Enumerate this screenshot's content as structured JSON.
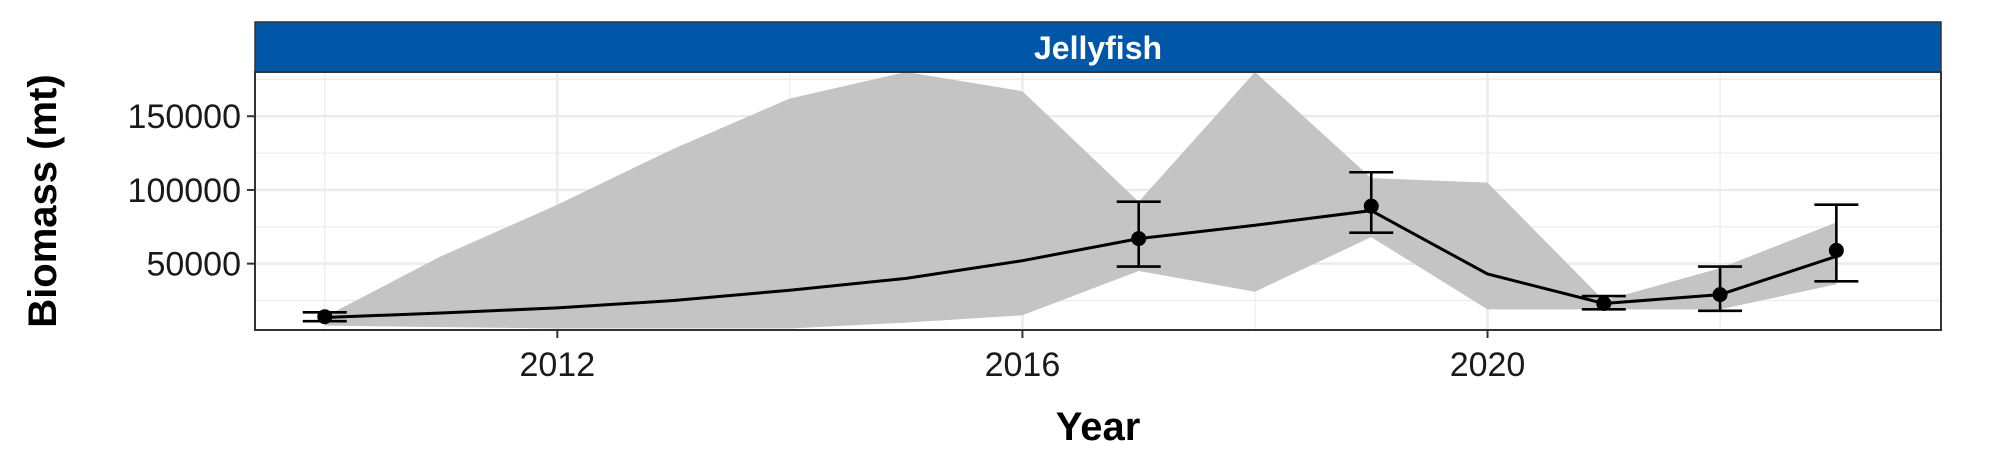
{
  "chart_data": {
    "type": "line",
    "title": "",
    "panel_title": "Jellyfish",
    "xlabel": "Year",
    "ylabel": "Biomass (mt)",
    "xlim": [
      2009.4,
      2023.9
    ],
    "ylim": [
      5000,
      180000
    ],
    "x_ticks": [
      2012,
      2016,
      2020
    ],
    "y_ticks": [
      50000,
      100000,
      150000
    ],
    "grid": true,
    "colors": {
      "strip": "#0057A8",
      "ribbon": "#C4C4C4",
      "line": "#000000",
      "grid": "#EBEBEB"
    },
    "ribbon": {
      "x": [
        2010,
        2011,
        2012,
        2013,
        2014,
        2015,
        2016,
        2017,
        2018,
        2019,
        2020,
        2021,
        2022,
        2023
      ],
      "lower": [
        8000,
        7000,
        6000,
        6000,
        6000,
        10000,
        15000,
        45000,
        31000,
        68000,
        19000,
        19000,
        19000,
        36000
      ],
      "upper": [
        14000,
        55000,
        90000,
        128000,
        162000,
        180000,
        167000,
        92000,
        180000,
        108000,
        105000,
        25000,
        47000,
        78000
      ]
    },
    "line": {
      "x": [
        2010,
        2011,
        2012,
        2013,
        2014,
        2015,
        2016,
        2017,
        2018,
        2019,
        2020,
        2021,
        2022,
        2023
      ],
      "y": [
        13500,
        16500,
        20000,
        25000,
        32000,
        40000,
        52000,
        67000,
        76000,
        86000,
        43000,
        23000,
        29000,
        55000
      ]
    },
    "observations": [
      {
        "x": 2010.0,
        "y": 14000,
        "ymin": 11000,
        "ymax": 17000
      },
      {
        "x": 2017.0,
        "y": 67000,
        "ymin": 48000,
        "ymax": 92000
      },
      {
        "x": 2019.0,
        "y": 89000,
        "ymin": 71000,
        "ymax": 112000
      },
      {
        "x": 2021.0,
        "y": 23000,
        "ymin": 19000,
        "ymax": 28000
      },
      {
        "x": 2022.0,
        "y": 29000,
        "ymin": 18000,
        "ymax": 48000
      },
      {
        "x": 2023.0,
        "y": 59000,
        "ymin": 38000,
        "ymax": 90000
      }
    ]
  }
}
